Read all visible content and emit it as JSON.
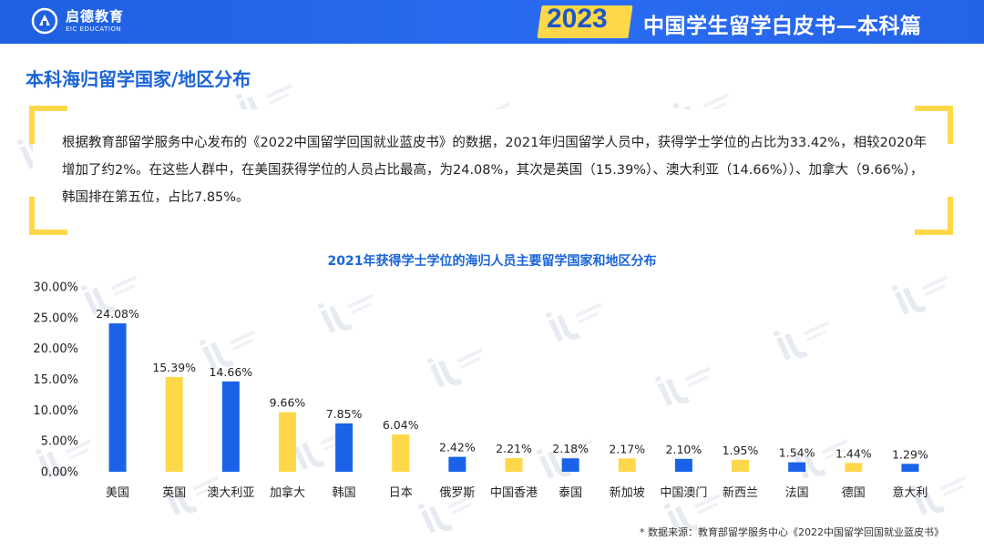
{
  "header": {
    "logo_cn": "启德教育",
    "logo_en": "EIC EDUCATION",
    "year": "2023",
    "report_title": "中国学生留学白皮书—本科篇"
  },
  "page_title": "本科海归留学国家/地区分布",
  "intro_text": "根据教育部留学服务中心发布的《2022中国留学回国就业蓝皮书》的数据，2021年归国留学人员中，获得学士学位的占比为33.42%，相较2020年增加了约2%。在这些人群中，在美国获得学位的人员占比最高，为24.08%，其次是英国（15.39%）、澳大利亚（14.66%））、加拿大（9.66%），韩国排在第五位，占比7.85%。",
  "footnote": "* 数据来源：教育部留学服务中心《2022中国留学回国就业蓝皮书》",
  "colors": {
    "blue": "#1a63e8",
    "yellow": "#ffd84a",
    "accent": "#1a64d8"
  },
  "chart_data": {
    "type": "bar",
    "title": "2021年获得学士学位的海归人员主要留学国家和地区分布",
    "categories": [
      "美国",
      "英国",
      "澳大利亚",
      "加拿大",
      "韩国",
      "日本",
      "俄罗斯",
      "中国香港",
      "泰国",
      "新加坡",
      "中国澳门",
      "新西兰",
      "法国",
      "德国",
      "意大利"
    ],
    "values": [
      24.08,
      15.39,
      14.66,
      9.66,
      7.85,
      6.04,
      2.42,
      2.21,
      2.18,
      2.17,
      2.1,
      1.95,
      1.54,
      1.44,
      1.29
    ],
    "value_labels": [
      "24.08%",
      "15.39%",
      "14.66%",
      "9.66%",
      "7.85%",
      "6.04%",
      "2.42%",
      "2.21%",
      "2.18%",
      "2.17%",
      "2.10%",
      "1.95%",
      "1.54%",
      "1.44%",
      "1.29%"
    ],
    "bar_colors": [
      "blue",
      "yellow",
      "blue",
      "yellow",
      "blue",
      "yellow",
      "blue",
      "yellow",
      "blue",
      "yellow",
      "blue",
      "yellow",
      "blue",
      "yellow",
      "blue"
    ],
    "ylim": [
      0,
      30
    ],
    "yticks": [
      "0.00%",
      "5.00%",
      "10.00%",
      "15.00%",
      "20.00%",
      "25.00%",
      "30.00%"
    ],
    "ytick_values": [
      0,
      5,
      10,
      15,
      20,
      25,
      30
    ],
    "grid": false,
    "legend": "none"
  }
}
